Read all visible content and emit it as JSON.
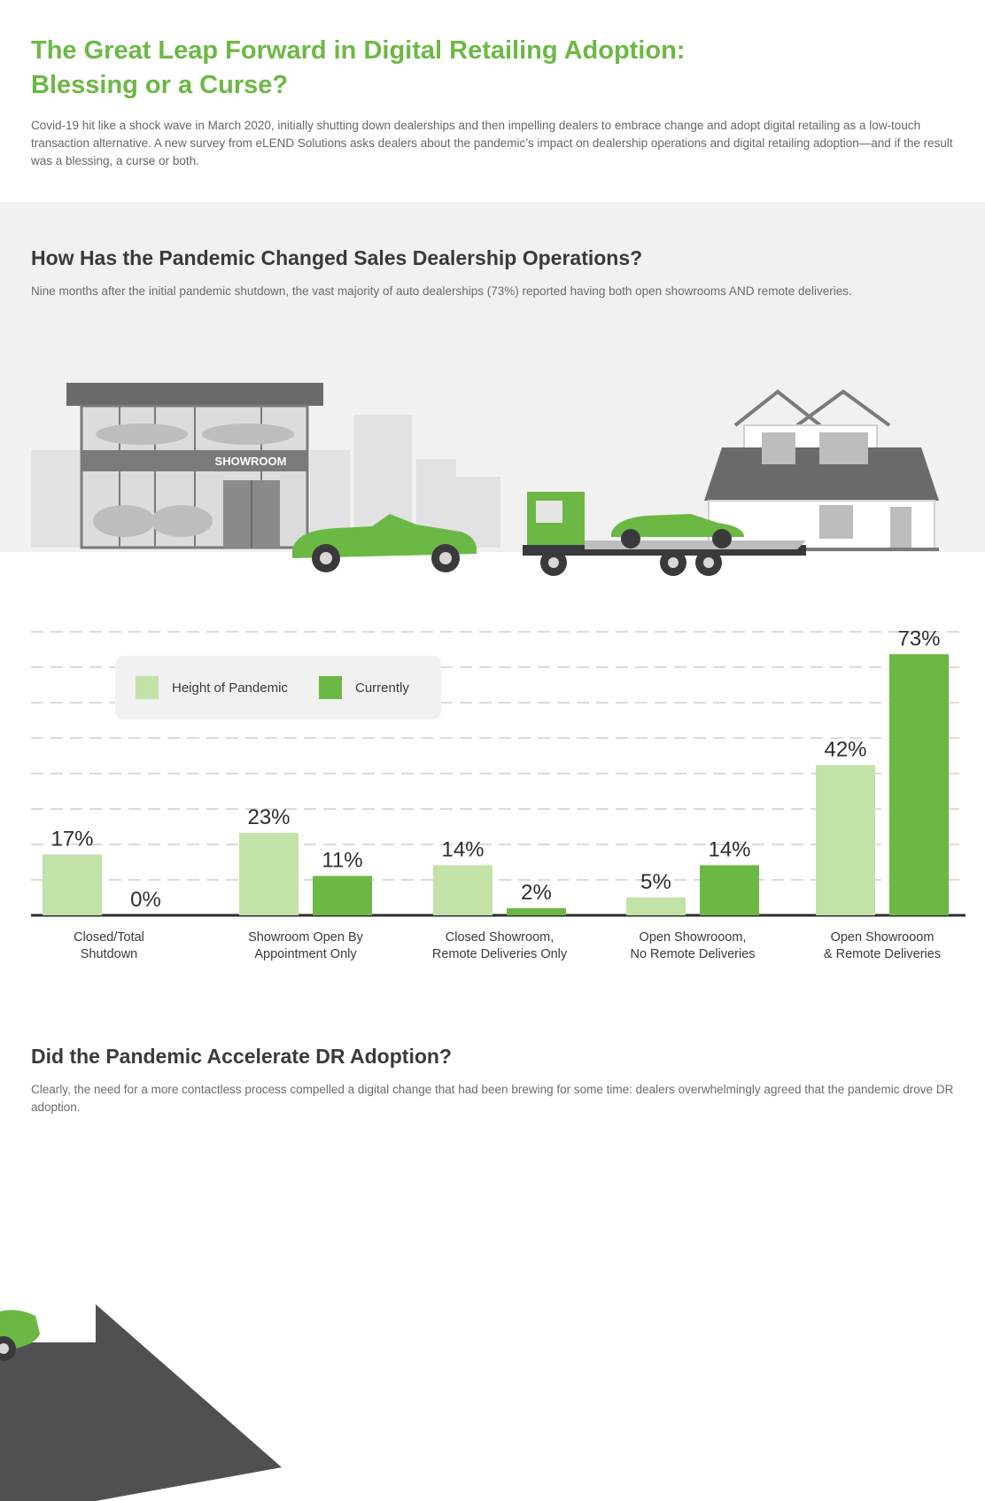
{
  "header": {
    "title_line1": "The Great Leap Forward in Digital Retailing Adoption:",
    "title_line2": "Blessing or a Curse?",
    "intro": "Covid-19 hit like a shock wave in March 2020, initially shutting down dealerships and then impelling dealers to embrace change and adopt digital retailing as a low-touch transaction alternative. A new survey from eLEND Solutions asks dealers about the pandemic’s impact on dealership operations and digital retailing adoption—and if the result was a blessing, a curse or both."
  },
  "section1": {
    "title": "How Has the Pandemic Changed Sales Dealership Operations?",
    "text": "Nine months after the initial pandemic shutdown, the vast majority of auto dealerships (73%) reported having both open showrooms AND remote deliveries."
  },
  "illustration": {
    "showroom_sign": "SHOWROOM"
  },
  "section2": {
    "title": "Did the Pandemic Accelerate DR Adoption?",
    "text": "Clearly, the need for a more contactless process compelled a digital change that had been brewing for some time: dealers overwhelmingly agreed that the pandemic drove DR adoption."
  },
  "colors": {
    "brand_green": "#6cb844",
    "light_green": "#c3e2a8",
    "dark_grey": "#505053",
    "band_grey": "#f1f1f2"
  },
  "chart_data": {
    "type": "bar",
    "categories": [
      [
        "Closed/Total",
        "Shutdown"
      ],
      [
        "Showroom Open By",
        "Appointment Only"
      ],
      [
        "Closed Showroom,",
        "Remote Deliveries Only"
      ],
      [
        "Open Showrooom,",
        "No Remote Deliveries"
      ],
      [
        "Open Showrooom",
        "& Remote Deliveries"
      ]
    ],
    "series": [
      {
        "name": "Height of Pandemic",
        "color": "#c3e2a8",
        "values": [
          17,
          23,
          14,
          5,
          42
        ],
        "labels": [
          "17%",
          "23%",
          "14%",
          "5%",
          "42%"
        ]
      },
      {
        "name": "Currently",
        "color": "#6cb844",
        "values": [
          0,
          11,
          2,
          14,
          73
        ],
        "labels": [
          "0%",
          "11%",
          "2%",
          "14%",
          "73%"
        ]
      }
    ],
    "ylim": [
      0,
      80
    ],
    "grid": true,
    "legend_position": "top-left"
  }
}
